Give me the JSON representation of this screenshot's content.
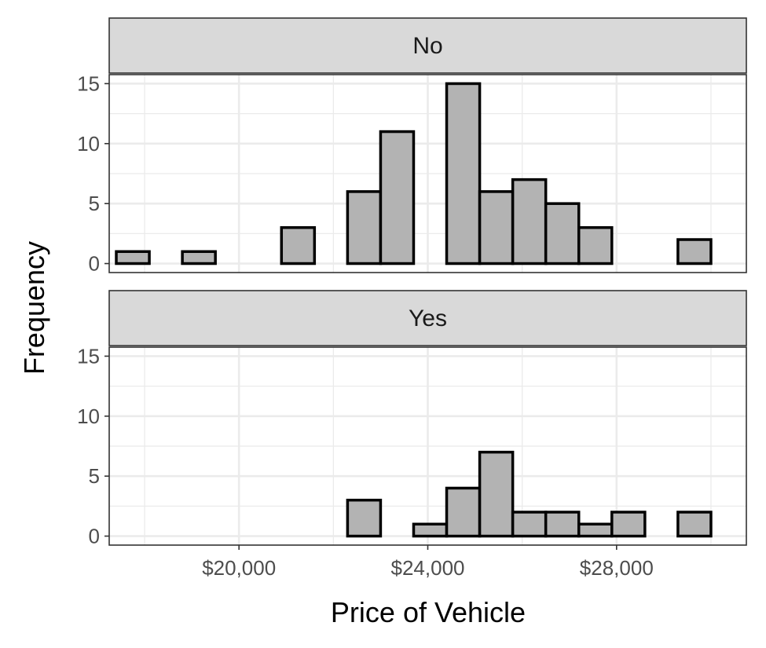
{
  "chart_data": {
    "type": "histogram",
    "facet_by": "row",
    "xlabel": "Price of Vehicle",
    "ylabel": "Frequency",
    "x_tick_values": [
      20000,
      24000,
      28000
    ],
    "x_tick_labels": [
      "$20,000",
      "$24,000",
      "$28,000"
    ],
    "xlim": [
      17250,
      30750
    ],
    "y_ticks": [
      0,
      5,
      10,
      15
    ],
    "ylim": [
      -0.75,
      15.75
    ],
    "grid": true,
    "bin_width": 700,
    "bin_starts": [
      17400,
      18100,
      18800,
      19500,
      20200,
      20900,
      21600,
      22300,
      23000,
      23700,
      24400,
      25100,
      25800,
      26500,
      27200,
      27900,
      28600,
      29300,
      30000
    ],
    "panels": [
      {
        "label": "No",
        "counts": [
          1,
          0,
          1,
          0,
          0,
          3,
          0,
          6,
          11,
          0,
          15,
          6,
          7,
          5,
          3,
          0,
          0,
          2,
          0
        ]
      },
      {
        "label": "Yes",
        "counts": [
          0,
          0,
          0,
          0,
          0,
          0,
          0,
          3,
          0,
          1,
          4,
          7,
          2,
          2,
          1,
          2,
          0,
          2,
          0
        ]
      }
    ]
  }
}
